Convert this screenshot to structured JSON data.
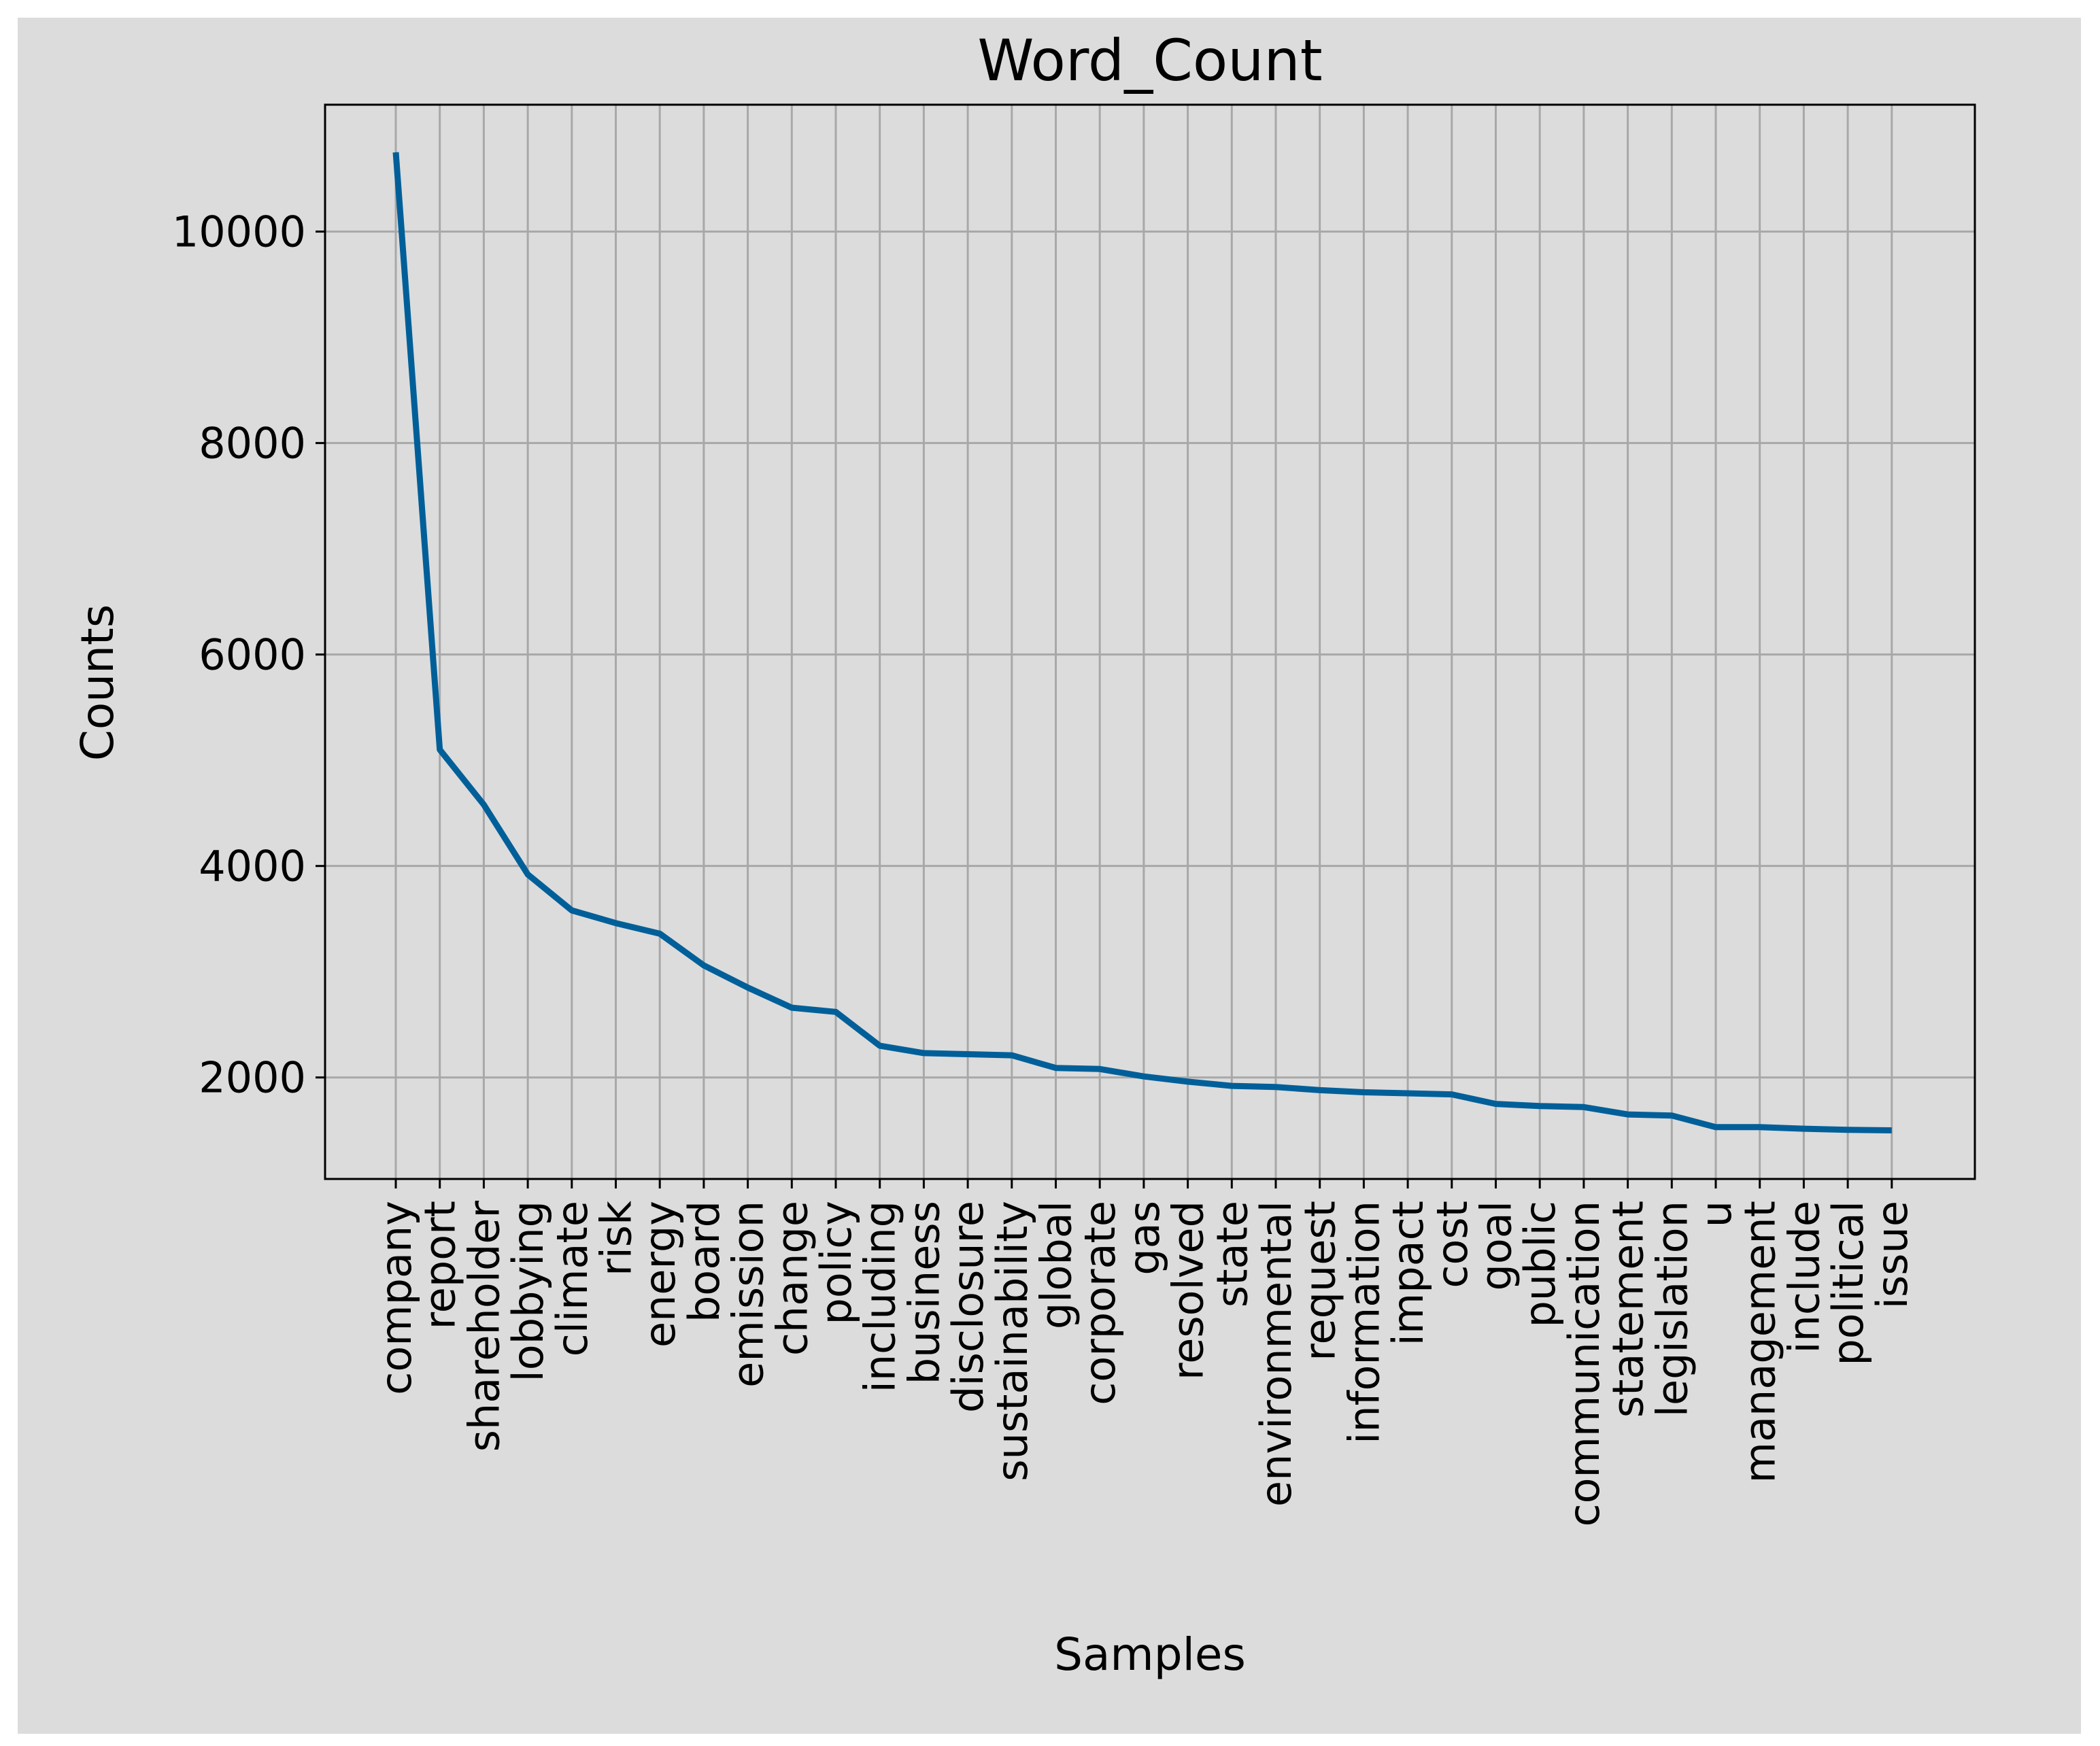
{
  "chart_data": {
    "type": "line",
    "title": "Word_Count",
    "xlabel": "Samples",
    "ylabel": "Counts",
    "categories": [
      "company",
      "report",
      "shareholder",
      "lobbying",
      "climate",
      "risk",
      "energy",
      "board",
      "emission",
      "change",
      "policy",
      "including",
      "business",
      "disclosure",
      "sustainability",
      "global",
      "corporate",
      "gas",
      "resolved",
      "state",
      "environmental",
      "request",
      "information",
      "impact",
      "cost",
      "goal",
      "public",
      "communication",
      "statement",
      "legislation",
      "u",
      "management",
      "include",
      "political",
      "issue"
    ],
    "values": [
      10750,
      5100,
      4580,
      3920,
      3580,
      3460,
      3360,
      3060,
      2850,
      2660,
      2620,
      2300,
      2230,
      2220,
      2210,
      2090,
      2080,
      2010,
      1960,
      1920,
      1910,
      1880,
      1860,
      1850,
      1840,
      1750,
      1730,
      1720,
      1650,
      1640,
      1530,
      1530,
      1515,
      1505,
      1500
    ],
    "yticks": [
      2000,
      4000,
      6000,
      8000,
      10000
    ],
    "ylim": [
      1040,
      11200
    ],
    "grid": true,
    "line_color": "#005f99"
  }
}
